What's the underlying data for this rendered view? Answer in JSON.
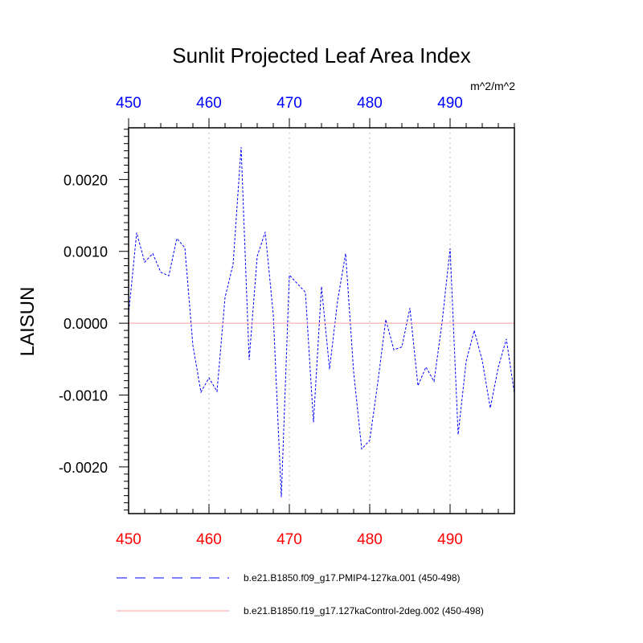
{
  "chart_data": {
    "type": "line",
    "title": "Sunlit Projected Leaf Area Index",
    "ylabel": "LAISUN",
    "units": "m^2/m^2",
    "xlim": [
      450,
      498
    ],
    "ylim": [
      -0.00265,
      0.00272
    ],
    "x_ticks": [
      "450",
      "460",
      "470",
      "480",
      "490"
    ],
    "x_tick_values": [
      450,
      460,
      470,
      480,
      490
    ],
    "y_ticks": [
      "0.0020",
      "0.0010",
      "0.0000",
      "-0.0010",
      "-0.0020"
    ],
    "y_tick_values": [
      0.002,
      0.001,
      0.0,
      -0.001,
      -0.002
    ],
    "bottom_axis_color": "#ff0000",
    "top_axis_color": "#0000ff",
    "grid": "vertical dotted at major x ticks",
    "series": [
      {
        "name": "b.e21.B1850.f09_g17.PMIP4-127ka.001 (450-498)",
        "color": "#0000ff",
        "style": "dashed",
        "x": [
          450,
          451,
          452,
          453,
          454,
          455,
          456,
          457,
          458,
          459,
          460,
          461,
          462,
          463,
          464,
          465,
          466,
          467,
          468,
          469,
          470,
          471,
          472,
          473,
          474,
          475,
          476,
          477,
          478,
          479,
          480,
          481,
          482,
          483,
          484,
          485,
          486,
          487,
          488,
          489,
          490,
          491,
          492,
          493,
          494,
          495,
          496,
          497,
          498
        ],
        "y": [
          0.00012,
          0.00126,
          0.00085,
          0.00097,
          0.00071,
          0.00066,
          0.00118,
          0.00105,
          -0.00031,
          -0.00096,
          -0.00076,
          -0.00095,
          0.00036,
          0.00082,
          0.00245,
          -0.00051,
          0.00093,
          0.00127,
          0.00012,
          -0.00242,
          0.00067,
          0.00055,
          0.00043,
          -0.00138,
          0.00051,
          -0.00064,
          0.00031,
          0.00097,
          -0.00068,
          -0.00175,
          -0.00163,
          -0.00083,
          5e-05,
          -0.00037,
          -0.00033,
          0.00021,
          -0.00087,
          -0.00061,
          -0.00081,
          1e-05,
          0.00104,
          -0.00155,
          -0.00053,
          -0.0001,
          -0.00052,
          -0.00118,
          -0.00061,
          -0.00022,
          -0.00098
        ]
      },
      {
        "name": "b.e21.B1850.f19_g17.127kaControl-2deg.002 (450-498)",
        "color": "#ff9f9f",
        "style": "solid",
        "x": [
          450,
          498
        ],
        "y": [
          0,
          0
        ]
      }
    ]
  }
}
